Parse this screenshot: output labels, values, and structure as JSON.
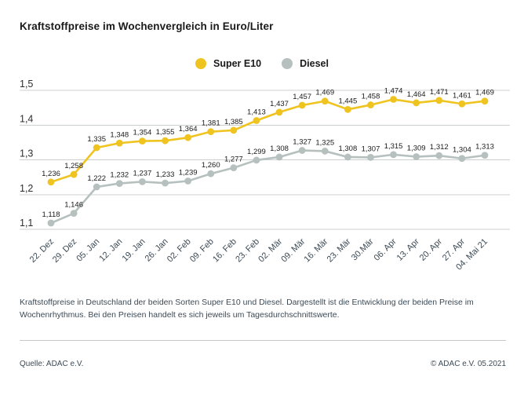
{
  "title": "Kraftstoffpreise im Wochenvergleich in Euro/Liter",
  "description": "Kraftstoffpreise in Deutschland der beiden Sorten Super E10 und Diesel. Dargestellt ist die Entwicklung der beiden Preise im Wochenrhythmus. Bei den Preisen handelt es sich jeweils um Tagesdurchschnittswerte.",
  "source": "Quelle: ADAC e.V.",
  "copyright": "© ADAC e.V. 05.2021",
  "colors": {
    "super_e10": "#F0C420",
    "diesel": "#B6C0BE",
    "grid": "#cbcfd0",
    "axis_text": "#2e2e2e",
    "category_text": "#3c4a55",
    "value_label_text": "#1a1a1a"
  },
  "chart_data": {
    "type": "line",
    "title": "Kraftstoffpreise im Wochenvergleich in Euro/Liter",
    "xlabel": "",
    "ylabel": "Euro/Liter",
    "ylim": [
      1.1,
      1.5
    ],
    "yticks": [
      1.1,
      1.2,
      1.3,
      1.4,
      1.5
    ],
    "grid": true,
    "legend_position": "top-center",
    "value_labels": true,
    "decimal_separator": ",",
    "categories": [
      "22. Dez",
      "29. Dez",
      "05. Jan",
      "12. Jan",
      "19. Jan",
      "26. Jan",
      "02. Feb",
      "09. Feb",
      "16. Feb",
      "23. Feb",
      "02. Mär",
      "09. Mär",
      "16. Mär",
      "23. Mär",
      "30.Mär",
      "06. Apr",
      "13. Apr",
      "20. Apr",
      "27. Apr",
      "04. Mai 21"
    ],
    "series": [
      {
        "name": "Super E10",
        "color": "#F0C420",
        "values": [
          1.236,
          1.258,
          1.335,
          1.348,
          1.354,
          1.355,
          1.364,
          1.381,
          1.385,
          1.413,
          1.437,
          1.457,
          1.469,
          1.445,
          1.458,
          1.474,
          1.464,
          1.471,
          1.461,
          1.469
        ]
      },
      {
        "name": "Diesel",
        "color": "#B6C0BE",
        "values": [
          1.118,
          1.146,
          1.222,
          1.232,
          1.237,
          1.233,
          1.239,
          1.26,
          1.277,
          1.299,
          1.308,
          1.327,
          1.325,
          1.308,
          1.307,
          1.315,
          1.309,
          1.312,
          1.304,
          1.313
        ]
      }
    ]
  }
}
